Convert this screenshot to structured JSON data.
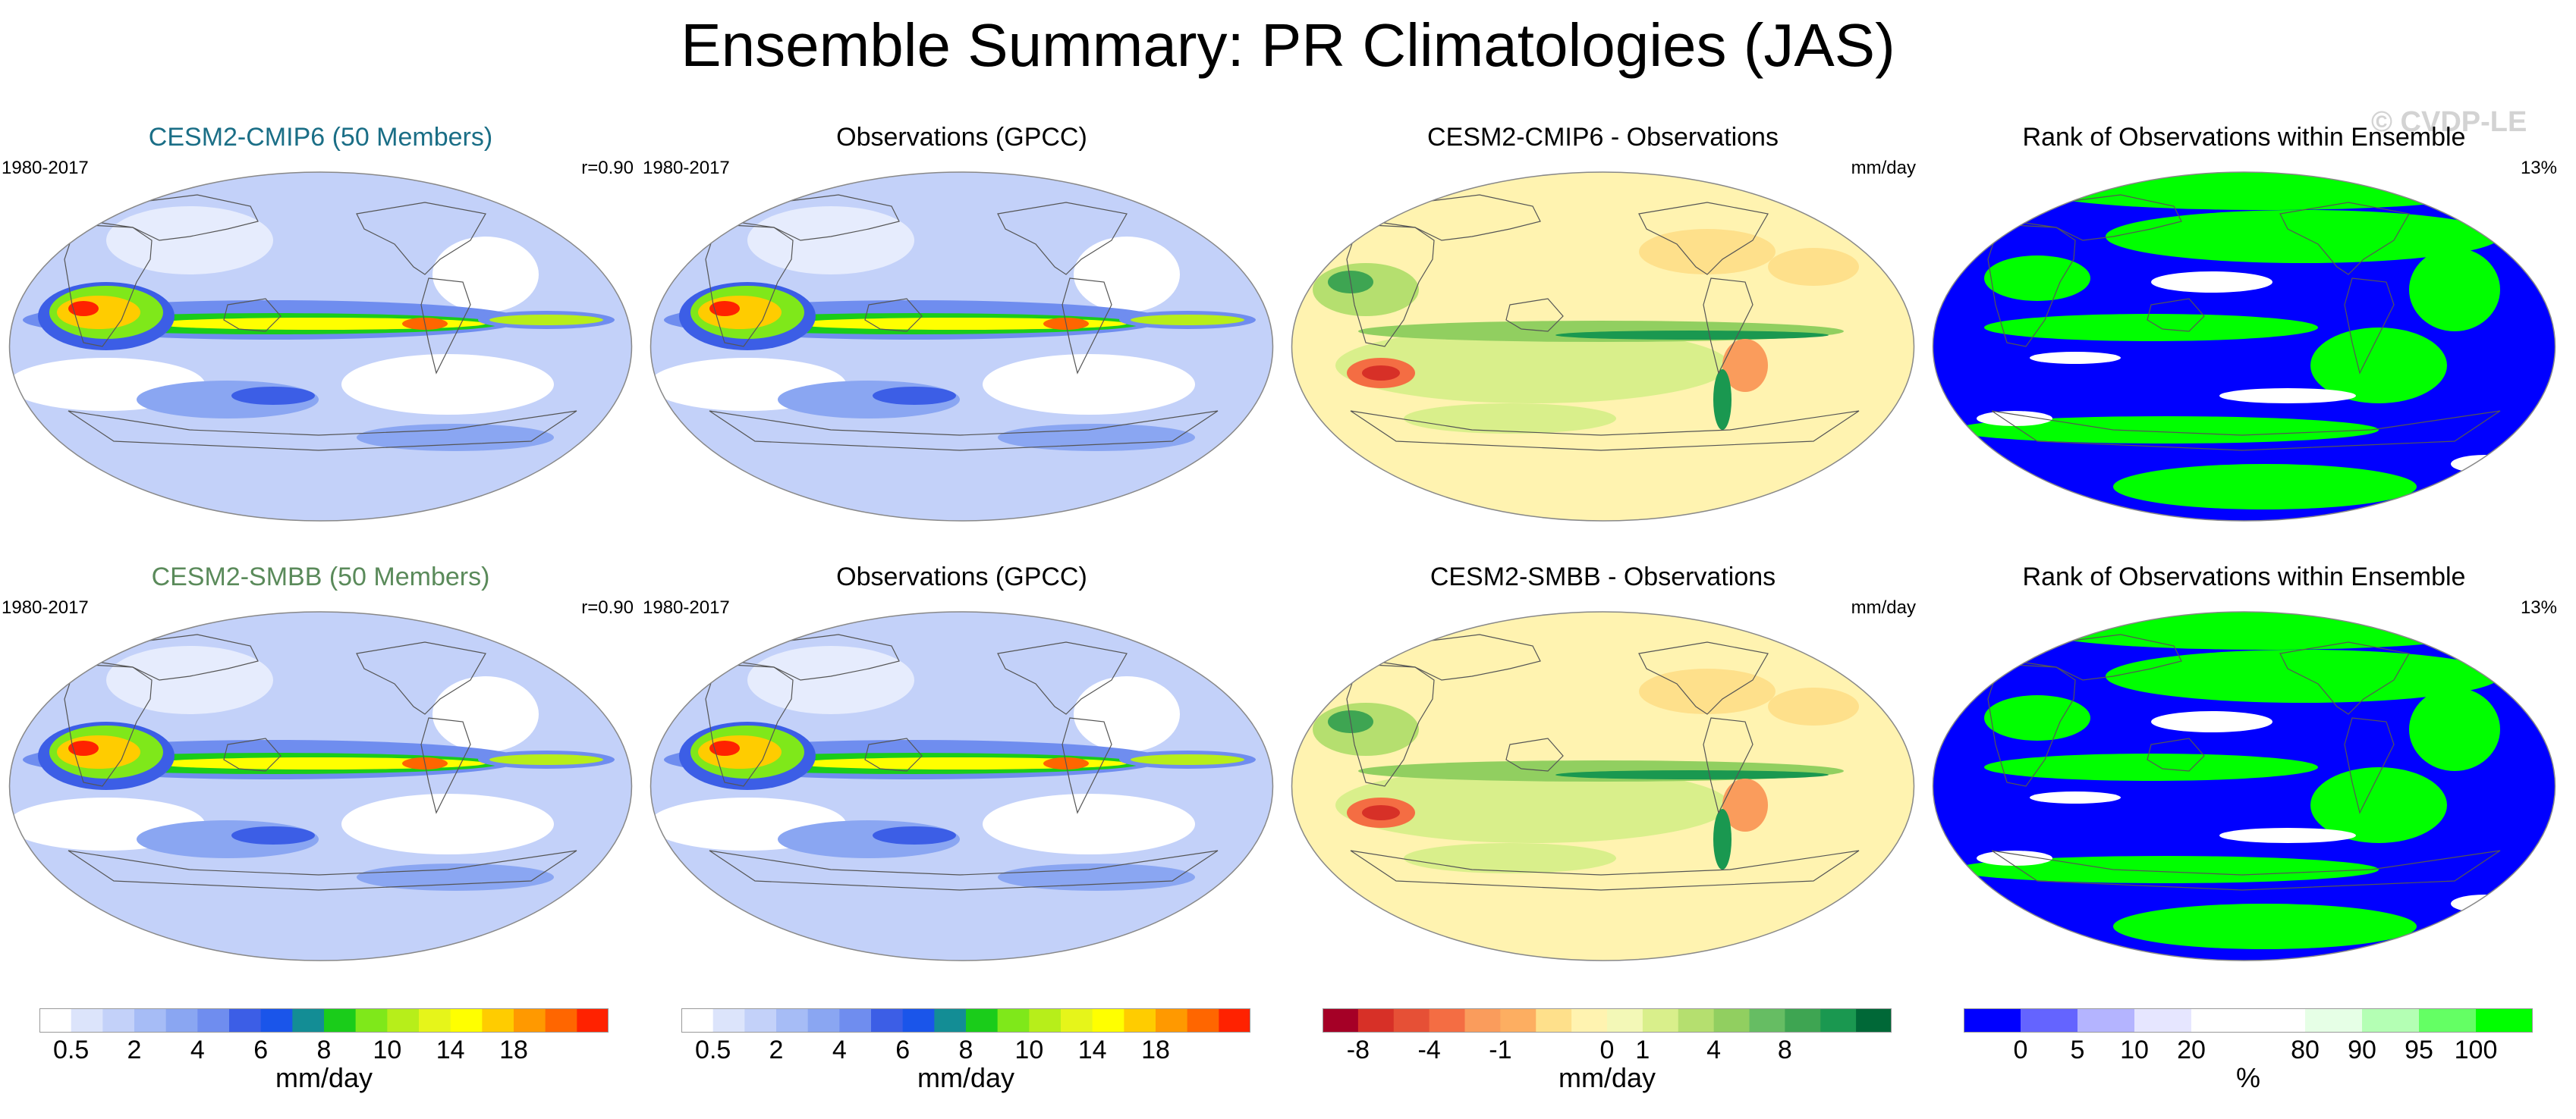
{
  "title": "Ensemble Summary: PR Climatologies (JAS)",
  "watermark": "© CVDP-LE",
  "panels": [
    {
      "title": "CESM2-CMIP6 (50 Members)",
      "left": "1980-2017",
      "right": "r=0.90",
      "title_color": "#1a6e86",
      "kind": "pr"
    },
    {
      "title": "Observations (GPCC)",
      "left": "1980-2017",
      "right": "",
      "title_color": "#000000",
      "kind": "pr"
    },
    {
      "title": "CESM2-CMIP6 - Observations",
      "left": "",
      "right": "mm/day",
      "title_color": "#000000",
      "kind": "diff"
    },
    {
      "title": "Rank of Observations within Ensemble",
      "left": "",
      "right": "13%",
      "title_color": "#000000",
      "kind": "rank"
    },
    {
      "title": "CESM2-SMBB (50 Members)",
      "left": "1980-2017",
      "right": "r=0.90",
      "title_color": "#5a8a5a",
      "kind": "pr"
    },
    {
      "title": "Observations (GPCC)",
      "left": "1980-2017",
      "right": "",
      "title_color": "#000000",
      "kind": "pr"
    },
    {
      "title": "CESM2-SMBB - Observations",
      "left": "",
      "right": "mm/day",
      "title_color": "#000000",
      "kind": "diff"
    },
    {
      "title": "Rank of Observations within Ensemble",
      "left": "",
      "right": "13%",
      "title_color": "#000000",
      "kind": "rank"
    }
  ],
  "colorbars": [
    {
      "unit": "mm/day",
      "colors": [
        "#ffffff",
        "#dce4fb",
        "#c3d1f9",
        "#a6bcf6",
        "#8aa6f2",
        "#6f8def",
        "#3c5ee6",
        "#1a55ea",
        "#138d95",
        "#1acc1a",
        "#7fe81a",
        "#b7ee1a",
        "#e6f51a",
        "#ffff00",
        "#ffcc00",
        "#ff9900",
        "#ff6600",
        "#ff2200"
      ],
      "ticks": [
        "0.5",
        "2",
        "4",
        "6",
        "8",
        "10",
        "14",
        "18"
      ]
    },
    {
      "unit": "mm/day",
      "colors": [
        "#ffffff",
        "#dce4fb",
        "#c3d1f9",
        "#a6bcf6",
        "#8aa6f2",
        "#6f8def",
        "#3c5ee6",
        "#1a55ea",
        "#138d95",
        "#1acc1a",
        "#7fe81a",
        "#b7ee1a",
        "#e6f51a",
        "#ffff00",
        "#ffcc00",
        "#ff9900",
        "#ff6600",
        "#ff2200"
      ],
      "ticks": [
        "0.5",
        "2",
        "4",
        "6",
        "8",
        "10",
        "14",
        "18"
      ]
    },
    {
      "unit": "mm/day",
      "colors": [
        "#a50026",
        "#d73027",
        "#e65036",
        "#f46d43",
        "#fa9c5c",
        "#fdae61",
        "#fee08b",
        "#fff3b0",
        "#f3f8b7",
        "#d9ef8b",
        "#b5df6f",
        "#91cf60",
        "#66bd63",
        "#3ea552",
        "#1a9850",
        "#006837"
      ],
      "ticks": [
        "-8",
        "-4",
        "-1",
        "0",
        "1",
        "4",
        "8"
      ]
    },
    {
      "unit": "%",
      "colors": [
        "#0000ff",
        "#6464ff",
        "#b4b4ff",
        "#e6e6ff",
        "#ffffff",
        "#ffffff",
        "#e6ffe6",
        "#b4ffb4",
        "#64ff64",
        "#00ff00"
      ],
      "ticks": [
        "0",
        "5",
        "10",
        "20",
        "80",
        "90",
        "95",
        "100"
      ]
    }
  ]
}
